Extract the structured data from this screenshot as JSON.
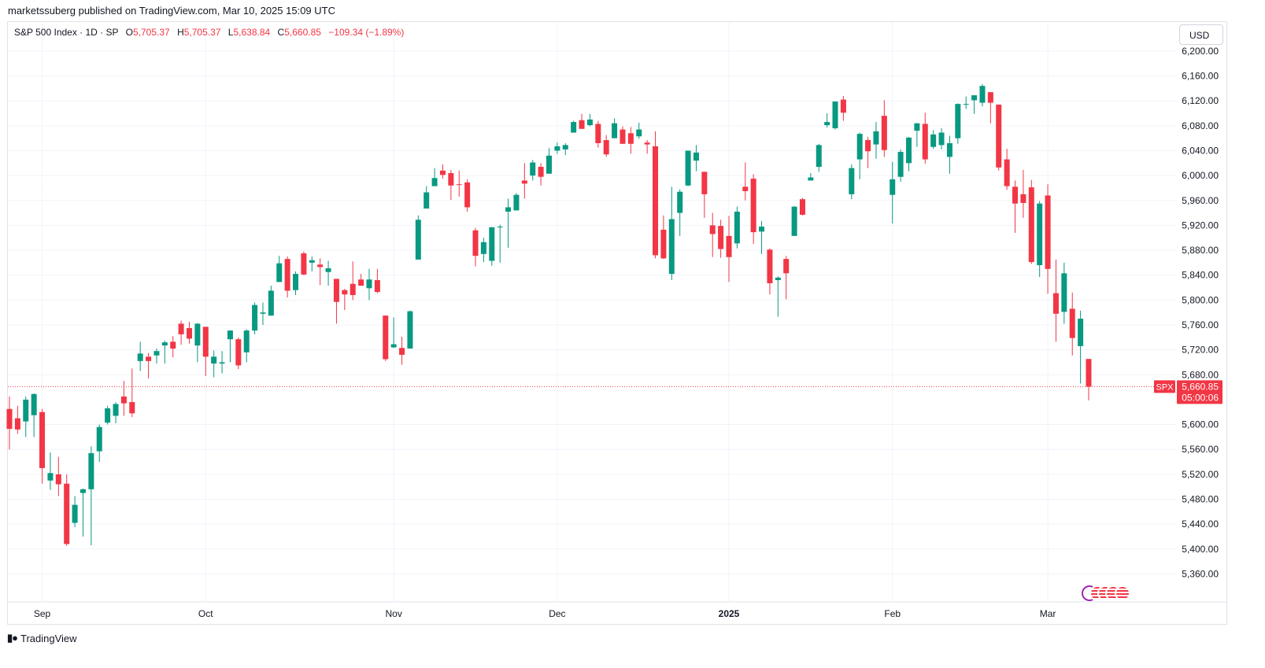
{
  "publisher_text": "marketssuberg published on TradingView.com, Mar 10, 2025 15:09 UTC",
  "legend": {
    "symbol": "S&P 500 Index · 1D · SP",
    "open_label": "O",
    "open": "5,705.37",
    "high_label": "H",
    "high": "5,705.37",
    "low_label": "L",
    "low": "5,638.84",
    "close_label": "C",
    "close": "5,660.85",
    "change": "−109.34 (−1.89%)"
  },
  "currency": "USD",
  "price_tag": {
    "symbol": "SPX",
    "price": "5,660.85",
    "countdown": "05:00:06"
  },
  "branding": "TradingView",
  "colors": {
    "up": "#089981",
    "down": "#f23645",
    "grid": "#f0f3fa",
    "text": "#131722"
  },
  "chart_data": {
    "type": "candlestick",
    "ylim": [
      5315,
      6210
    ],
    "y_ticks": [
      5360,
      5400,
      5440,
      5480,
      5520,
      5560,
      5600,
      5680,
      5720,
      5760,
      5800,
      5840,
      5880,
      5920,
      5960,
      6000,
      6040,
      6080,
      6120,
      6160,
      6200
    ],
    "y_tick_labels": [
      "5,360.00",
      "5,400.00",
      "5,440.00",
      "5,480.00",
      "5,520.00",
      "5,560.00",
      "5,600.00",
      "5,680.00",
      "5,720.00",
      "5,760.00",
      "5,800.00",
      "5,840.00",
      "5,880.00",
      "5,920.00",
      "5,960.00",
      "6,000.00",
      "6,040.00",
      "6,080.00",
      "6,120.00",
      "6,160.00",
      "6,200.00"
    ],
    "x_ticks": [
      {
        "label": "Sep",
        "date": "2024-09-03",
        "bold": false
      },
      {
        "label": "Oct",
        "date": "2024-10-01",
        "bold": false
      },
      {
        "label": "Nov",
        "date": "2024-11-01",
        "bold": false
      },
      {
        "label": "Dec",
        "date": "2024-12-02",
        "bold": false
      },
      {
        "label": "2025",
        "date": "2025-01-02",
        "bold": true
      },
      {
        "label": "Feb",
        "date": "2025-02-03",
        "bold": false
      },
      {
        "label": "Mar",
        "date": "2025-03-03",
        "bold": false
      }
    ],
    "last_price": 5660.85,
    "candles": [
      {
        "d": "2024-08-27",
        "o": 5625,
        "h": 5645,
        "l": 5560,
        "c": 5593
      },
      {
        "d": "2024-08-28",
        "o": 5610,
        "h": 5630,
        "l": 5585,
        "c": 5592
      },
      {
        "d": "2024-08-29",
        "o": 5605,
        "h": 5645,
        "l": 5580,
        "c": 5640
      },
      {
        "d": "2024-08-30",
        "o": 5615,
        "h": 5650,
        "l": 5580,
        "c": 5649
      },
      {
        "d": "2024-09-03",
        "o": 5620,
        "h": 5625,
        "l": 5505,
        "c": 5530
      },
      {
        "d": "2024-09-04",
        "o": 5510,
        "h": 5555,
        "l": 5495,
        "c": 5522
      },
      {
        "d": "2024-09-05",
        "o": 5520,
        "h": 5548,
        "l": 5485,
        "c": 5504
      },
      {
        "d": "2024-09-06",
        "o": 5505,
        "h": 5520,
        "l": 5405,
        "c": 5408
      },
      {
        "d": "2024-09-09",
        "o": 5442,
        "h": 5485,
        "l": 5435,
        "c": 5471
      },
      {
        "d": "2024-09-10",
        "o": 5490,
        "h": 5497,
        "l": 5420,
        "c": 5496
      },
      {
        "d": "2024-09-11",
        "o": 5496,
        "h": 5565,
        "l": 5406,
        "c": 5554
      },
      {
        "d": "2024-09-12",
        "o": 5557,
        "h": 5600,
        "l": 5540,
        "c": 5596
      },
      {
        "d": "2024-09-13",
        "o": 5603,
        "h": 5630,
        "l": 5600,
        "c": 5626
      },
      {
        "d": "2024-09-16",
        "o": 5614,
        "h": 5636,
        "l": 5602,
        "c": 5633
      },
      {
        "d": "2024-09-17",
        "o": 5645,
        "h": 5670,
        "l": 5614,
        "c": 5634
      },
      {
        "d": "2024-09-18",
        "o": 5636,
        "h": 5690,
        "l": 5612,
        "c": 5618
      },
      {
        "d": "2024-09-19",
        "o": 5702,
        "h": 5733,
        "l": 5686,
        "c": 5714
      },
      {
        "d": "2024-09-20",
        "o": 5709,
        "h": 5715,
        "l": 5674,
        "c": 5702
      },
      {
        "d": "2024-09-23",
        "o": 5711,
        "h": 5722,
        "l": 5698,
        "c": 5718
      },
      {
        "d": "2024-09-24",
        "o": 5727,
        "h": 5735,
        "l": 5698,
        "c": 5732
      },
      {
        "d": "2024-09-25",
        "o": 5733,
        "h": 5742,
        "l": 5708,
        "c": 5722
      },
      {
        "d": "2024-09-26",
        "o": 5762,
        "h": 5767,
        "l": 5728,
        "c": 5745
      },
      {
        "d": "2024-09-27",
        "o": 5755,
        "h": 5765,
        "l": 5730,
        "c": 5738
      },
      {
        "d": "2024-09-30",
        "o": 5727,
        "h": 5763,
        "l": 5700,
        "c": 5762
      },
      {
        "d": "2024-10-01",
        "o": 5757,
        "h": 5757,
        "l": 5678,
        "c": 5709
      },
      {
        "d": "2024-10-02",
        "o": 5698,
        "h": 5719,
        "l": 5676,
        "c": 5709
      },
      {
        "d": "2024-10-03",
        "o": 5698,
        "h": 5718,
        "l": 5682,
        "c": 5700
      },
      {
        "d": "2024-10-04",
        "o": 5737,
        "h": 5751,
        "l": 5700,
        "c": 5751
      },
      {
        "d": "2024-10-07",
        "o": 5737,
        "h": 5740,
        "l": 5689,
        "c": 5695
      },
      {
        "d": "2024-10-08",
        "o": 5716,
        "h": 5753,
        "l": 5700,
        "c": 5751
      },
      {
        "d": "2024-10-09",
        "o": 5751,
        "h": 5796,
        "l": 5745,
        "c": 5792
      },
      {
        "d": "2024-10-10",
        "o": 5778,
        "h": 5796,
        "l": 5760,
        "c": 5780
      },
      {
        "d": "2024-10-11",
        "o": 5775,
        "h": 5823,
        "l": 5775,
        "c": 5815
      },
      {
        "d": "2024-10-14",
        "o": 5829,
        "h": 5871,
        "l": 5829,
        "c": 5859
      },
      {
        "d": "2024-10-15",
        "o": 5866,
        "h": 5870,
        "l": 5804,
        "c": 5815
      },
      {
        "d": "2024-10-16",
        "o": 5816,
        "h": 5846,
        "l": 5808,
        "c": 5842
      },
      {
        "d": "2024-10-17",
        "o": 5875,
        "h": 5878,
        "l": 5840,
        "c": 5841
      },
      {
        "d": "2024-10-18",
        "o": 5860,
        "h": 5870,
        "l": 5846,
        "c": 5864
      },
      {
        "d": "2024-10-21",
        "o": 5857,
        "h": 5867,
        "l": 5824,
        "c": 5853
      },
      {
        "d": "2024-10-22",
        "o": 5845,
        "h": 5863,
        "l": 5823,
        "c": 5851
      },
      {
        "d": "2024-10-23",
        "o": 5834,
        "h": 5834,
        "l": 5762,
        "c": 5797
      },
      {
        "d": "2024-10-24",
        "o": 5816,
        "h": 5818,
        "l": 5784,
        "c": 5809
      },
      {
        "d": "2024-10-25",
        "o": 5826,
        "h": 5862,
        "l": 5800,
        "c": 5808
      },
      {
        "d": "2024-10-28",
        "o": 5833,
        "h": 5842,
        "l": 5823,
        "c": 5823
      },
      {
        "d": "2024-10-29",
        "o": 5819,
        "h": 5850,
        "l": 5800,
        "c": 5833
      },
      {
        "d": "2024-10-30",
        "o": 5832,
        "h": 5850,
        "l": 5811,
        "c": 5813
      },
      {
        "d": "2024-10-31",
        "o": 5775,
        "h": 5775,
        "l": 5702,
        "c": 5705
      },
      {
        "d": "2024-11-01",
        "o": 5724,
        "h": 5772,
        "l": 5723,
        "c": 5729
      },
      {
        "d": "2024-11-04",
        "o": 5723,
        "h": 5741,
        "l": 5696,
        "c": 5712
      },
      {
        "d": "2024-11-05",
        "o": 5722,
        "h": 5783,
        "l": 5722,
        "c": 5782
      },
      {
        "d": "2024-11-06",
        "o": 5865,
        "h": 5936,
        "l": 5865,
        "c": 5929
      },
      {
        "d": "2024-11-07",
        "o": 5947,
        "h": 5983,
        "l": 5947,
        "c": 5973
      },
      {
        "d": "2024-11-08",
        "o": 5983,
        "h": 6012,
        "l": 5983,
        "c": 5996
      },
      {
        "d": "2024-11-11",
        "o": 6008,
        "h": 6018,
        "l": 5995,
        "c": 6001
      },
      {
        "d": "2024-11-12",
        "o": 6004,
        "h": 6009,
        "l": 5961,
        "c": 5984
      },
      {
        "d": "2024-11-13",
        "o": 5986,
        "h": 6008,
        "l": 5966,
        "c": 5985
      },
      {
        "d": "2024-11-14",
        "o": 5989,
        "h": 5994,
        "l": 5942,
        "c": 5949
      },
      {
        "d": "2024-11-15",
        "o": 5912,
        "h": 5916,
        "l": 5854,
        "c": 5871
      },
      {
        "d": "2024-11-18",
        "o": 5874,
        "h": 5900,
        "l": 5861,
        "c": 5893
      },
      {
        "d": "2024-11-19",
        "o": 5863,
        "h": 5917,
        "l": 5855,
        "c": 5917
      },
      {
        "d": "2024-11-20",
        "o": 5917,
        "h": 5921,
        "l": 5860,
        "c": 5918
      },
      {
        "d": "2024-11-21",
        "o": 5942,
        "h": 5963,
        "l": 5884,
        "c": 5949
      },
      {
        "d": "2024-11-22",
        "o": 5944,
        "h": 5972,
        "l": 5944,
        "c": 5969
      },
      {
        "d": "2024-11-25",
        "o": 5992,
        "h": 6020,
        "l": 5963,
        "c": 5987
      },
      {
        "d": "2024-11-26",
        "o": 6000,
        "h": 6025,
        "l": 5992,
        "c": 6021
      },
      {
        "d": "2024-11-27",
        "o": 6014,
        "h": 6020,
        "l": 5984,
        "c": 5998
      },
      {
        "d": "2024-11-29",
        "o": 6003,
        "h": 6044,
        "l": 6003,
        "c": 6032
      },
      {
        "d": "2024-12-02",
        "o": 6040,
        "h": 6053,
        "l": 6035,
        "c": 6047
      },
      {
        "d": "2024-12-03",
        "o": 6042,
        "h": 6052,
        "l": 6033,
        "c": 6049
      },
      {
        "d": "2024-12-04",
        "o": 6069,
        "h": 6088,
        "l": 6069,
        "c": 6086
      },
      {
        "d": "2024-12-05",
        "o": 6089,
        "h": 6099,
        "l": 6079,
        "c": 6075
      },
      {
        "d": "2024-12-06",
        "o": 6081,
        "h": 6099,
        "l": 6079,
        "c": 6090
      },
      {
        "d": "2024-12-09",
        "o": 6083,
        "h": 6088,
        "l": 6045,
        "c": 6052
      },
      {
        "d": "2024-12-10",
        "o": 6057,
        "h": 6065,
        "l": 6030,
        "c": 6034
      },
      {
        "d": "2024-12-11",
        "o": 6060,
        "h": 6092,
        "l": 6060,
        "c": 6084
      },
      {
        "d": "2024-12-12",
        "o": 6074,
        "h": 6079,
        "l": 6051,
        "c": 6051
      },
      {
        "d": "2024-12-13",
        "o": 6068,
        "h": 6078,
        "l": 6035,
        "c": 6051
      },
      {
        "d": "2024-12-16",
        "o": 6063,
        "h": 6085,
        "l": 6059,
        "c": 6074
      },
      {
        "d": "2024-12-17",
        "o": 6053,
        "h": 6057,
        "l": 6035,
        "c": 6050
      },
      {
        "d": "2024-12-18",
        "o": 6047,
        "h": 6071,
        "l": 5867,
        "c": 5872
      },
      {
        "d": "2024-12-19",
        "o": 5913,
        "h": 5936,
        "l": 5866,
        "c": 5867
      },
      {
        "d": "2024-12-20",
        "o": 5842,
        "h": 5982,
        "l": 5832,
        "c": 5930
      },
      {
        "d": "2024-12-23",
        "o": 5940,
        "h": 5978,
        "l": 5903,
        "c": 5974
      },
      {
        "d": "2024-12-24",
        "o": 5984,
        "h": 6040,
        "l": 5983,
        "c": 6040
      },
      {
        "d": "2024-12-26",
        "o": 6024,
        "h": 6049,
        "l": 6007,
        "c": 6037
      },
      {
        "d": "2024-12-27",
        "o": 6006,
        "h": 6006,
        "l": 5932,
        "c": 5970
      },
      {
        "d": "2024-12-30",
        "o": 5920,
        "h": 5940,
        "l": 5869,
        "c": 5906
      },
      {
        "d": "2024-12-31",
        "o": 5919,
        "h": 5929,
        "l": 5868,
        "c": 5882
      },
      {
        "d": "2025-01-02",
        "o": 5903,
        "h": 5935,
        "l": 5829,
        "c": 5869
      },
      {
        "d": "2025-01-03",
        "o": 5891,
        "h": 5950,
        "l": 5883,
        "c": 5942
      },
      {
        "d": "2025-01-06",
        "o": 5982,
        "h": 6021,
        "l": 5960,
        "c": 5975
      },
      {
        "d": "2025-01-07",
        "o": 5995,
        "h": 6002,
        "l": 5890,
        "c": 5909
      },
      {
        "d": "2025-01-08",
        "o": 5910,
        "h": 5927,
        "l": 5874,
        "c": 5918
      },
      {
        "d": "2025-01-10",
        "o": 5881,
        "h": 5883,
        "l": 5809,
        "c": 5827
      },
      {
        "d": "2025-01-13",
        "o": 5832,
        "h": 5838,
        "l": 5773,
        "c": 5836
      },
      {
        "d": "2025-01-14",
        "o": 5866,
        "h": 5871,
        "l": 5801,
        "c": 5843
      },
      {
        "d": "2025-01-15",
        "o": 5903,
        "h": 5951,
        "l": 5903,
        "c": 5950
      },
      {
        "d": "2025-01-16",
        "o": 5962,
        "h": 5964,
        "l": 5936,
        "c": 5937
      },
      {
        "d": "2025-01-17",
        "o": 5992,
        "h": 6004,
        "l": 5992,
        "c": 5997
      },
      {
        "d": "2025-01-21",
        "o": 6014,
        "h": 6051,
        "l": 6006,
        "c": 6049
      },
      {
        "d": "2025-01-22",
        "o": 6081,
        "h": 6100,
        "l": 6077,
        "c": 6086
      },
      {
        "d": "2025-01-23",
        "o": 6076,
        "h": 6118,
        "l": 6074,
        "c": 6119
      },
      {
        "d": "2025-01-24",
        "o": 6122,
        "h": 6128,
        "l": 6088,
        "c": 6101
      },
      {
        "d": "2025-01-27",
        "o": 5970,
        "h": 6018,
        "l": 5962,
        "c": 6012
      },
      {
        "d": "2025-01-28",
        "o": 6026,
        "h": 6069,
        "l": 5994,
        "c": 6067
      },
      {
        "d": "2025-01-29",
        "o": 6057,
        "h": 6062,
        "l": 6012,
        "c": 6039
      },
      {
        "d": "2025-01-30",
        "o": 6050,
        "h": 6086,
        "l": 6027,
        "c": 6071
      },
      {
        "d": "2025-01-31",
        "o": 6096,
        "h": 6121,
        "l": 6030,
        "c": 6041
      },
      {
        "d": "2025-02-03",
        "o": 5969,
        "h": 6022,
        "l": 5923,
        "c": 5994
      },
      {
        "d": "2025-02-04",
        "o": 5998,
        "h": 6042,
        "l": 5990,
        "c": 6038
      },
      {
        "d": "2025-02-05",
        "o": 6020,
        "h": 6062,
        "l": 6007,
        "c": 6061
      },
      {
        "d": "2025-02-06",
        "o": 6072,
        "h": 6084,
        "l": 6046,
        "c": 6084
      },
      {
        "d": "2025-02-07",
        "o": 6083,
        "h": 6101,
        "l": 6019,
        "c": 6026
      },
      {
        "d": "2025-02-10",
        "o": 6046,
        "h": 6073,
        "l": 6043,
        "c": 6066
      },
      {
        "d": "2025-02-11",
        "o": 6049,
        "h": 6076,
        "l": 6042,
        "c": 6069
      },
      {
        "d": "2025-02-12",
        "o": 6030,
        "h": 6064,
        "l": 6003,
        "c": 6052
      },
      {
        "d": "2025-02-13",
        "o": 6060,
        "h": 6116,
        "l": 6051,
        "c": 6115
      },
      {
        "d": "2025-02-14",
        "o": 6115,
        "h": 6127,
        "l": 6107,
        "c": 6115
      },
      {
        "d": "2025-02-18",
        "o": 6121,
        "h": 6129,
        "l": 6099,
        "c": 6129
      },
      {
        "d": "2025-02-19",
        "o": 6117,
        "h": 6147,
        "l": 6111,
        "c": 6144
      },
      {
        "d": "2025-02-20",
        "o": 6134,
        "h": 6134,
        "l": 6084,
        "c": 6117
      },
      {
        "d": "2025-02-21",
        "o": 6114,
        "h": 6114,
        "l": 6008,
        "c": 6013
      },
      {
        "d": "2025-02-24",
        "o": 6026,
        "h": 6043,
        "l": 5977,
        "c": 5983
      },
      {
        "d": "2025-02-25",
        "o": 5982,
        "h": 5992,
        "l": 5908,
        "c": 5955
      },
      {
        "d": "2025-02-26",
        "o": 5970,
        "h": 6009,
        "l": 5932,
        "c": 5956
      },
      {
        "d": "2025-02-27",
        "o": 5981,
        "h": 5993,
        "l": 5858,
        "c": 5861
      },
      {
        "d": "2025-02-28",
        "o": 5856,
        "h": 5959,
        "l": 5837,
        "c": 5955
      },
      {
        "d": "2025-03-03",
        "o": 5968,
        "h": 5986,
        "l": 5810,
        "c": 5850
      },
      {
        "d": "2025-03-04",
        "o": 5811,
        "h": 5865,
        "l": 5733,
        "c": 5778
      },
      {
        "d": "2025-03-05",
        "o": 5781,
        "h": 5860,
        "l": 5762,
        "c": 5843
      },
      {
        "d": "2025-03-06",
        "o": 5786,
        "h": 5812,
        "l": 5711,
        "c": 5739
      },
      {
        "d": "2025-03-07",
        "o": 5726,
        "h": 5783,
        "l": 5666,
        "c": 5770
      },
      {
        "d": "2025-03-10",
        "o": 5705.37,
        "h": 5705.37,
        "l": 5638.84,
        "c": 5660.85
      }
    ]
  }
}
